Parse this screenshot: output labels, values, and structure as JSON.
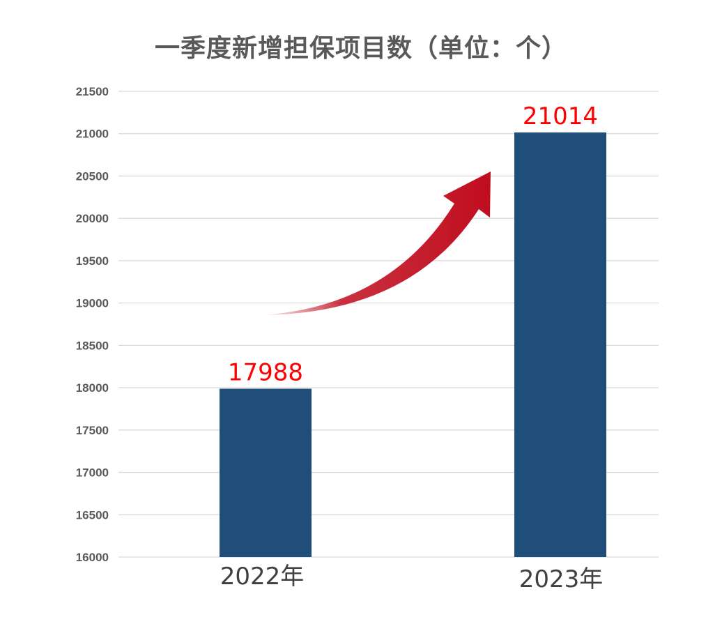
{
  "chart_data": {
    "type": "bar",
    "title": "一季度新增担保项目数（单位：个）",
    "categories": [
      "2022年",
      "2023年"
    ],
    "values": [
      17988,
      21014
    ],
    "data_labels": [
      "17988",
      "21014"
    ],
    "ylim": [
      16000,
      21500
    ],
    "yticks": [
      16000,
      16500,
      17000,
      17500,
      18000,
      18500,
      19000,
      19500,
      20000,
      20500,
      21000,
      21500
    ],
    "grid": true,
    "legend": "none",
    "xlabel": "",
    "ylabel": "",
    "annotation": "red-upward-arrow",
    "colors": {
      "bar": "#1f4e79",
      "data_label": "#ff0000",
      "arrow": "#c00d1e",
      "grid": "#d9d9d9"
    }
  }
}
